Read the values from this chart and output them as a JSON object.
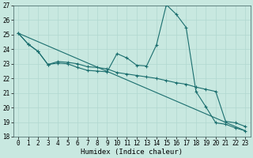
{
  "title": "",
  "xlabel": "Humidex (Indice chaleur)",
  "bg_color": "#c8e8e0",
  "grid_major_color": "#b0d8d0",
  "grid_minor_color": "#c0e0d8",
  "line_color": "#1a6e6e",
  "xlim": [
    -0.5,
    23.5
  ],
  "ylim": [
    18,
    27
  ],
  "xticks": [
    0,
    1,
    2,
    3,
    4,
    5,
    6,
    7,
    8,
    9,
    10,
    11,
    12,
    13,
    14,
    15,
    16,
    17,
    18,
    19,
    20,
    21,
    22,
    23
  ],
  "yticks": [
    18,
    19,
    20,
    21,
    22,
    23,
    24,
    25,
    26,
    27
  ],
  "line1_x": [
    0,
    1,
    2,
    3,
    4,
    5,
    6,
    7,
    8,
    9,
    10,
    11,
    12,
    13,
    14,
    15,
    16,
    17,
    18,
    19,
    20,
    21,
    22,
    23
  ],
  "line1_y": [
    25.1,
    24.35,
    23.85,
    22.95,
    23.05,
    23.0,
    22.75,
    22.55,
    22.5,
    22.45,
    23.7,
    23.4,
    22.9,
    22.85,
    24.3,
    27.05,
    26.4,
    25.5,
    21.1,
    20.05,
    18.95,
    18.85,
    18.6,
    18.4
  ],
  "line2_x": [
    0,
    1,
    2,
    3,
    4,
    5,
    6,
    7,
    8,
    9,
    10,
    11,
    12,
    13,
    14,
    15,
    16,
    17,
    18,
    19,
    20,
    21,
    22,
    23
  ],
  "line2_y": [
    25.1,
    24.35,
    23.85,
    22.95,
    23.15,
    23.1,
    23.0,
    22.8,
    22.75,
    22.65,
    22.4,
    22.3,
    22.2,
    22.1,
    22.0,
    21.85,
    21.7,
    21.6,
    21.4,
    21.25,
    21.1,
    19.05,
    18.95,
    18.7
  ],
  "line3_x": [
    0,
    23
  ],
  "line3_y": [
    25.1,
    18.4
  ],
  "tick_fontsize": 5.5,
  "xlabel_fontsize": 6.5
}
